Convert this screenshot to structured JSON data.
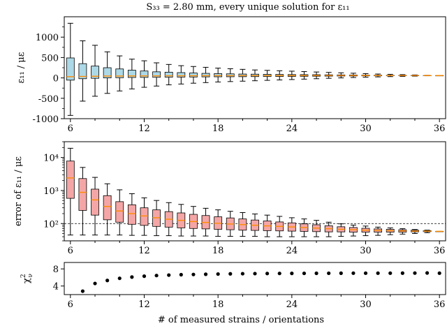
{
  "figure": {
    "title": "S₃₃ = 2.80 mm,  every unique solution for ε₁₁",
    "xlabel": "# of measured strains / orientations"
  },
  "chart_data": [
    {
      "type": "box",
      "panel": "strain",
      "ylabel": "ε₁₁ / με",
      "xlim": [
        5.5,
        36.5
      ],
      "ylim": [
        -1000,
        1500
      ],
      "xticks": [
        6,
        12,
        18,
        24,
        30,
        36
      ],
      "yticks": [
        -1000,
        -500,
        0,
        500,
        1000
      ],
      "colors": {
        "box": "#add8e6",
        "median": "#ff8c00"
      },
      "boxes": [
        {
          "x": 6,
          "whislo": -920,
          "q1": -55,
          "med": 30,
          "q3": 490,
          "whishi": 1340
        },
        {
          "x": 7,
          "whislo": -570,
          "q1": -20,
          "med": 35,
          "q3": 350,
          "whishi": 910
        },
        {
          "x": 8,
          "whislo": -450,
          "q1": -10,
          "med": 40,
          "q3": 290,
          "whishi": 800
        },
        {
          "x": 9,
          "whislo": -380,
          "q1": 0,
          "med": 45,
          "q3": 250,
          "whishi": 640
        },
        {
          "x": 10,
          "whislo": -320,
          "q1": 5,
          "med": 45,
          "q3": 220,
          "whishi": 540
        },
        {
          "x": 11,
          "whislo": -270,
          "q1": 10,
          "med": 48,
          "q3": 190,
          "whishi": 460
        },
        {
          "x": 12,
          "whislo": -230,
          "q1": 12,
          "med": 50,
          "q3": 170,
          "whishi": 420
        },
        {
          "x": 13,
          "whislo": -200,
          "q1": 15,
          "med": 50,
          "q3": 150,
          "whishi": 370
        },
        {
          "x": 14,
          "whislo": -170,
          "q1": 18,
          "med": 52,
          "q3": 140,
          "whishi": 330
        },
        {
          "x": 15,
          "whislo": -150,
          "q1": 20,
          "med": 52,
          "q3": 130,
          "whishi": 300
        },
        {
          "x": 16,
          "whislo": -130,
          "q1": 22,
          "med": 53,
          "q3": 120,
          "whishi": 280
        },
        {
          "x": 17,
          "whislo": -115,
          "q1": 25,
          "med": 54,
          "q3": 112,
          "whishi": 260
        },
        {
          "x": 18,
          "whislo": -100,
          "q1": 27,
          "med": 55,
          "q3": 105,
          "whishi": 240
        },
        {
          "x": 19,
          "whislo": -90,
          "q1": 28,
          "med": 55,
          "q3": 100,
          "whishi": 225
        },
        {
          "x": 20,
          "whislo": -80,
          "q1": 30,
          "med": 56,
          "q3": 95,
          "whishi": 210
        },
        {
          "x": 21,
          "whislo": -70,
          "q1": 32,
          "med": 56,
          "q3": 92,
          "whishi": 195
        },
        {
          "x": 22,
          "whislo": -60,
          "q1": 33,
          "med": 57,
          "q3": 88,
          "whishi": 185
        },
        {
          "x": 23,
          "whislo": -50,
          "q1": 35,
          "med": 57,
          "q3": 85,
          "whishi": 175
        },
        {
          "x": 24,
          "whislo": -40,
          "q1": 37,
          "med": 57,
          "q3": 82,
          "whishi": 165
        },
        {
          "x": 25,
          "whislo": -30,
          "q1": 39,
          "med": 58,
          "q3": 80,
          "whishi": 155
        },
        {
          "x": 26,
          "whislo": -20,
          "q1": 41,
          "med": 58,
          "q3": 78,
          "whishi": 145
        },
        {
          "x": 27,
          "whislo": -10,
          "q1": 43,
          "med": 58,
          "q3": 75,
          "whishi": 135
        },
        {
          "x": 28,
          "whislo": 0,
          "q1": 45,
          "med": 58,
          "q3": 73,
          "whishi": 125
        },
        {
          "x": 29,
          "whislo": 10,
          "q1": 47,
          "med": 58,
          "q3": 71,
          "whishi": 115
        },
        {
          "x": 30,
          "whislo": 18,
          "q1": 49,
          "med": 58,
          "q3": 69,
          "whishi": 105
        },
        {
          "x": 31,
          "whislo": 25,
          "q1": 50,
          "med": 58,
          "q3": 67,
          "whishi": 95
        },
        {
          "x": 32,
          "whislo": 32,
          "q1": 52,
          "med": 58,
          "q3": 65,
          "whishi": 88
        },
        {
          "x": 33,
          "whislo": 38,
          "q1": 53,
          "med": 58,
          "q3": 64,
          "whishi": 80
        },
        {
          "x": 34,
          "whislo": 44,
          "q1": 55,
          "med": 58,
          "q3": 62,
          "whishi": 72
        },
        {
          "x": 35,
          "whislo": 52,
          "q1": 57,
          "med": 58,
          "q3": 60,
          "whishi": 64
        },
        {
          "x": 36,
          "whislo": 58,
          "q1": 58,
          "med": 58,
          "q3": 58,
          "whishi": 58
        }
      ]
    },
    {
      "type": "box",
      "panel": "error",
      "ylabel": "error of ε₁₁ / με",
      "yscale": "log",
      "xlim": [
        5.5,
        36.5
      ],
      "ylim": [
        30,
        30000
      ],
      "xticks": [
        6,
        12,
        18,
        24,
        30,
        36
      ],
      "yticks": [
        100,
        1000,
        10000
      ],
      "yticklabels": [
        "10²",
        "10³",
        "10⁴"
      ],
      "reference_line": 100,
      "colors": {
        "box": "#f4a6a6",
        "median": "#ff8c00"
      },
      "boxes": [
        {
          "x": 6,
          "whislo": 45,
          "q1": 580,
          "med": 2400,
          "q3": 7800,
          "whishi": 19000
        },
        {
          "x": 7,
          "whislo": 45,
          "q1": 250,
          "med": 880,
          "q3": 2300,
          "whishi": 5000
        },
        {
          "x": 8,
          "whislo": 45,
          "q1": 180,
          "med": 520,
          "q3": 1100,
          "whishi": 2500
        },
        {
          "x": 9,
          "whislo": 45,
          "q1": 130,
          "med": 330,
          "q3": 700,
          "whishi": 1600
        },
        {
          "x": 10,
          "whislo": 45,
          "q1": 110,
          "med": 240,
          "q3": 460,
          "whishi": 1050
        },
        {
          "x": 11,
          "whislo": 44,
          "q1": 95,
          "med": 200,
          "q3": 370,
          "whishi": 800
        },
        {
          "x": 12,
          "whislo": 44,
          "q1": 88,
          "med": 170,
          "q3": 300,
          "whishi": 600
        },
        {
          "x": 13,
          "whislo": 43,
          "q1": 82,
          "med": 150,
          "q3": 260,
          "whishi": 500
        },
        {
          "x": 14,
          "whislo": 43,
          "q1": 78,
          "med": 135,
          "q3": 230,
          "whishi": 430
        },
        {
          "x": 15,
          "whislo": 42,
          "q1": 74,
          "med": 125,
          "q3": 210,
          "whishi": 380
        },
        {
          "x": 16,
          "whislo": 42,
          "q1": 71,
          "med": 115,
          "q3": 190,
          "whishi": 330
        },
        {
          "x": 17,
          "whislo": 42,
          "q1": 69,
          "med": 108,
          "q3": 175,
          "whishi": 290
        },
        {
          "x": 18,
          "whislo": 41,
          "q1": 67,
          "med": 102,
          "q3": 160,
          "whishi": 260
        },
        {
          "x": 19,
          "whislo": 41,
          "q1": 65,
          "med": 97,
          "q3": 148,
          "whishi": 235
        },
        {
          "x": 20,
          "whislo": 41,
          "q1": 63,
          "med": 93,
          "q3": 138,
          "whishi": 215
        },
        {
          "x": 21,
          "whislo": 41,
          "q1": 62,
          "med": 89,
          "q3": 128,
          "whishi": 195
        },
        {
          "x": 22,
          "whislo": 40,
          "q1": 61,
          "med": 85,
          "q3": 120,
          "whishi": 180
        },
        {
          "x": 23,
          "whislo": 40,
          "q1": 60,
          "med": 82,
          "q3": 112,
          "whishi": 165
        },
        {
          "x": 24,
          "whislo": 40,
          "q1": 59,
          "med": 79,
          "q3": 105,
          "whishi": 150
        },
        {
          "x": 25,
          "whislo": 40,
          "q1": 58,
          "med": 76,
          "q3": 98,
          "whishi": 138
        },
        {
          "x": 26,
          "whislo": 40,
          "q1": 57,
          "med": 73,
          "q3": 92,
          "whishi": 125
        },
        {
          "x": 27,
          "whislo": 40,
          "q1": 56,
          "med": 70,
          "q3": 86,
          "whishi": 110
        },
        {
          "x": 28,
          "whislo": 41,
          "q1": 56,
          "med": 67,
          "q3": 80,
          "whishi": 98
        },
        {
          "x": 29,
          "whislo": 42,
          "q1": 55,
          "med": 65,
          "q3": 76,
          "whishi": 90
        },
        {
          "x": 30,
          "whislo": 43,
          "q1": 55,
          "med": 63,
          "q3": 72,
          "whishi": 84
        },
        {
          "x": 31,
          "whislo": 44,
          "q1": 55,
          "med": 62,
          "q3": 69,
          "whishi": 78
        },
        {
          "x": 32,
          "whislo": 46,
          "q1": 55,
          "med": 61,
          "q3": 67,
          "whishi": 74
        },
        {
          "x": 33,
          "whislo": 48,
          "q1": 55,
          "med": 60,
          "q3": 65,
          "whishi": 70
        },
        {
          "x": 34,
          "whislo": 50,
          "q1": 56,
          "med": 59,
          "q3": 63,
          "whishi": 66
        },
        {
          "x": 35,
          "whislo": 53,
          "q1": 57,
          "med": 59,
          "q3": 61,
          "whishi": 63
        },
        {
          "x": 36,
          "whislo": 58,
          "q1": 58,
          "med": 58,
          "q3": 58,
          "whishi": 58
        }
      ]
    },
    {
      "type": "scatter",
      "panel": "chi2",
      "ylabel_base": "χ",
      "ylabel_sup": "2",
      "ylabel_sub": "ν",
      "xlim": [
        5.5,
        36.5
      ],
      "ylim": [
        2,
        9.5
      ],
      "xticks": [
        6,
        12,
        18,
        24,
        30,
        36
      ],
      "yticks": [
        4,
        8
      ],
      "colors": {
        "marker": "#000000"
      },
      "x": [
        7,
        8,
        9,
        10,
        11,
        12,
        13,
        14,
        15,
        16,
        17,
        18,
        19,
        20,
        21,
        22,
        23,
        24,
        25,
        26,
        27,
        28,
        29,
        30,
        31,
        32,
        33,
        34,
        35,
        36
      ],
      "y": [
        2.8,
        4.6,
        5.3,
        5.8,
        6.1,
        6.3,
        6.45,
        6.55,
        6.65,
        6.7,
        6.75,
        6.8,
        6.85,
        6.88,
        6.9,
        6.92,
        6.94,
        6.95,
        6.96,
        6.97,
        6.98,
        6.99,
        7.0,
        7.0,
        7.0,
        7.0,
        7.01,
        7.02,
        7.05,
        7.0
      ]
    }
  ]
}
